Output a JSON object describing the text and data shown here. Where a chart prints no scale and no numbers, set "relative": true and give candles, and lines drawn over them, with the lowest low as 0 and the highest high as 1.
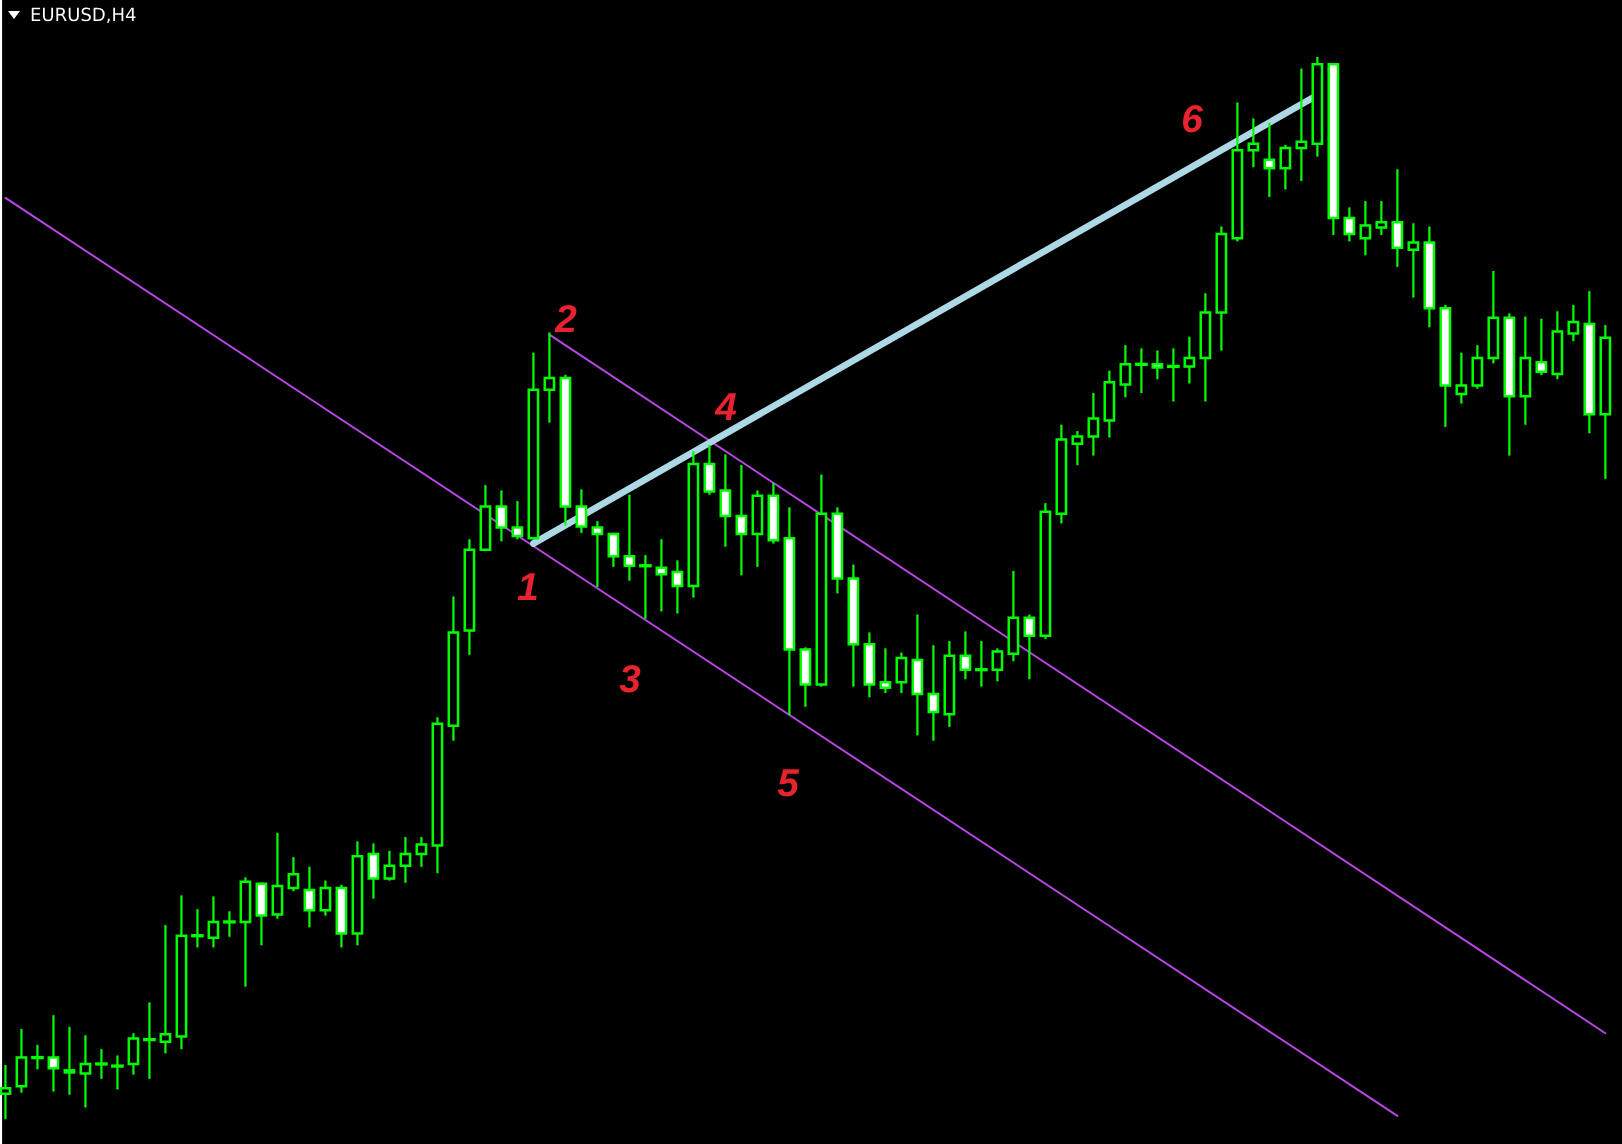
{
  "chart_data": {
    "type": "candlestick",
    "title": "EURUSD,H4",
    "relative": true,
    "tick_labels": false,
    "categories": [
      null,
      null,
      null,
      null,
      null,
      null,
      null,
      null,
      null,
      null,
      null,
      null,
      null,
      null,
      null,
      null,
      null,
      null,
      null,
      null,
      null,
      null,
      null,
      null,
      null,
      null,
      null,
      null,
      null,
      null,
      null,
      null,
      null,
      null,
      null,
      null,
      null,
      null,
      null,
      null,
      null,
      null,
      null,
      null,
      null,
      null,
      null,
      null,
      null,
      null,
      null,
      null,
      null,
      null,
      null,
      null,
      null,
      null,
      null,
      null,
      null,
      null,
      null,
      null,
      null,
      null,
      null,
      null,
      null,
      null,
      null,
      null,
      null,
      null,
      null,
      null,
      null,
      null,
      null,
      null,
      null,
      null,
      null,
      null,
      null,
      null,
      null,
      null,
      null,
      null,
      null,
      null,
      null,
      null,
      null,
      null,
      null,
      null,
      null,
      null,
      null
    ],
    "series": [
      {
        "color": "#00ff00",
        "colors": [
          "#000000",
          "#000000",
          "#00ff00",
          "#ffffff",
          "#ffffff",
          "#000000",
          "#00ff00",
          "#00ff00",
          "#000000",
          "#00ff00",
          "#000000",
          "#000000",
          "#00ff00",
          "#000000",
          "#00ff00",
          "#000000",
          "#ffffff",
          "#000000",
          "#000000",
          "#ffffff",
          "#000000",
          "#ffffff",
          "#000000",
          "#ffffff",
          "#000000",
          "#000000",
          "#000000",
          "#000000",
          "#000000",
          "#000000",
          "#000000",
          "#ffffff",
          "#ffffff",
          "#000000",
          "#000000",
          "#ffffff",
          "#ffffff",
          "#ffffff",
          "#ffffff",
          "#ffffff",
          "#00ff00",
          "#ffffff",
          "#ffffff",
          "#000000",
          "#ffffff",
          "#ffffff",
          "#ffffff",
          "#000000",
          "#ffffff",
          "#ffffff",
          "#ffffff",
          "#000000",
          "#ffffff",
          "#ffffff",
          "#ffffff",
          "#ffffff",
          "#000000",
          "#ffffff",
          "#ffffff",
          "#000000",
          "#ffffff",
          "#00ff00",
          "#000000",
          "#000000",
          "#ffffff",
          "#000000",
          "#000000",
          "#000000",
          "#000000",
          "#000000",
          "#000000",
          "#00ff00",
          "#ffffff",
          "#00ff00",
          "#000000",
          "#000000",
          "#000000",
          "#000000",
          "#000000",
          "#ffffff",
          "#000000",
          "#000000",
          "#000000",
          "#ffffff",
          "#ffffff",
          "#000000",
          "#000000",
          "#ffffff",
          "#000000",
          "#ffffff",
          "#ffffff",
          "#000000",
          "#000000",
          "#000000",
          "#ffffff",
          "#000000",
          "#ffffff",
          "#000000",
          "#000000",
          "#ffffff",
          "#000000"
        ],
        "ohlc": [
          [
            0.023,
            0.049,
            0,
            0.028
          ],
          [
            0.03,
            0.083,
            0.025,
            0.057
          ],
          [
            0.057,
            0.068,
            0.047,
            0.057
          ],
          [
            0.057,
            0.096,
            0.026,
            0.047
          ],
          [
            0.045,
            0.085,
            0.023,
            0.043
          ],
          [
            0.042,
            0.077,
            0.011,
            0.051
          ],
          [
            0.051,
            0.064,
            0.038,
            0.051
          ],
          [
            0.049,
            0.058,
            0.028,
            0.049
          ],
          [
            0.051,
            0.079,
            0.042,
            0.075
          ],
          [
            0.074,
            0.108,
            0.038,
            0.074
          ],
          [
            0.072,
            0.181,
            0.062,
            0.079
          ],
          [
            0.077,
            0.209,
            0.066,
            0.172
          ],
          [
            0.172,
            0.196,
            0.162,
            0.172
          ],
          [
            0.17,
            0.208,
            0.162,
            0.185
          ],
          [
            0.185,
            0.194,
            0.172,
            0.185
          ],
          [
            0.185,
            0.226,
            0.125,
            0.223
          ],
          [
            0.221,
            0.221,
            0.164,
            0.191
          ],
          [
            0.192,
            0.268,
            0.189,
            0.219
          ],
          [
            0.217,
            0.245,
            0.215,
            0.23
          ],
          [
            0.215,
            0.236,
            0.181,
            0.196
          ],
          [
            0.196,
            0.223,
            0.192,
            0.217
          ],
          [
            0.217,
            0.219,
            0.162,
            0.174
          ],
          [
            0.174,
            0.26,
            0.164,
            0.247
          ],
          [
            0.249,
            0.258,
            0.208,
            0.226
          ],
          [
            0.226,
            0.251,
            0.225,
            0.238
          ],
          [
            0.238,
            0.264,
            0.223,
            0.249
          ],
          [
            0.249,
            0.264,
            0.238,
            0.258
          ],
          [
            0.257,
            0.377,
            0.232,
            0.372
          ],
          [
            0.37,
            0.491,
            0.357,
            0.458
          ],
          [
            0.46,
            0.545,
            0.438,
            0.536
          ],
          [
            0.536,
            0.596,
            0.536,
            0.577
          ],
          [
            0.577,
            0.591,
            0.545,
            0.557
          ],
          [
            0.557,
            0.581,
            0.547,
            0.549
          ],
          [
            0.547,
            0.721,
            0.547,
            0.687
          ],
          [
            0.687,
            0.74,
            0.657,
            0.698
          ],
          [
            0.698,
            0.7,
            0.56,
            0.577
          ],
          [
            0.577,
            0.592,
            0.553,
            0.558
          ],
          [
            0.557,
            0.562,
            0.502,
            0.551
          ],
          [
            0.551,
            0.551,
            0.521,
            0.53
          ],
          [
            0.53,
            0.587,
            0.508,
            0.521
          ],
          [
            0.521,
            0.53,
            0.472,
            0.521
          ],
          [
            0.519,
            0.545,
            0.479,
            0.513
          ],
          [
            0.515,
            0.525,
            0.477,
            0.502
          ],
          [
            0.502,
            0.628,
            0.492,
            0.617
          ],
          [
            0.617,
            0.634,
            0.589,
            0.591
          ],
          [
            0.592,
            0.625,
            0.54,
            0.568
          ],
          [
            0.568,
            0.615,
            0.513,
            0.551
          ],
          [
            0.551,
            0.591,
            0.521,
            0.587
          ],
          [
            0.587,
            0.598,
            0.543,
            0.545
          ],
          [
            0.547,
            0.575,
            0.381,
            0.442
          ],
          [
            0.442,
            0.443,
            0.389,
            0.409
          ],
          [
            0.409,
            0.606,
            0.408,
            0.57
          ],
          [
            0.57,
            0.575,
            0.496,
            0.509
          ],
          [
            0.509,
            0.521,
            0.408,
            0.447
          ],
          [
            0.447,
            0.457,
            0.398,
            0.409
          ],
          [
            0.411,
            0.442,
            0.402,
            0.406
          ],
          [
            0.411,
            0.438,
            0.402,
            0.434
          ],
          [
            0.432,
            0.474,
            0.362,
            0.4
          ],
          [
            0.4,
            0.445,
            0.357,
            0.383
          ],
          [
            0.381,
            0.449,
            0.37,
            0.436
          ],
          [
            0.436,
            0.458,
            0.415,
            0.423
          ],
          [
            0.423,
            0.449,
            0.408,
            0.423
          ],
          [
            0.423,
            0.442,
            0.413,
            0.44
          ],
          [
            0.438,
            0.515,
            0.432,
            0.472
          ],
          [
            0.472,
            0.474,
            0.415,
            0.455
          ],
          [
            0.455,
            0.579,
            0.453,
            0.572
          ],
          [
            0.57,
            0.653,
            0.562,
            0.64
          ],
          [
            0.636,
            0.647,
            0.617,
            0.643
          ],
          [
            0.643,
            0.683,
            0.626,
            0.66
          ],
          [
            0.658,
            0.704,
            0.643,
            0.694
          ],
          [
            0.692,
            0.728,
            0.681,
            0.711
          ],
          [
            0.711,
            0.725,
            0.685,
            0.711
          ],
          [
            0.711,
            0.723,
            0.698,
            0.708
          ],
          [
            0.709,
            0.725,
            0.677,
            0.709
          ],
          [
            0.709,
            0.736,
            0.694,
            0.717
          ],
          [
            0.717,
            0.777,
            0.677,
            0.76
          ],
          [
            0.76,
            0.84,
            0.725,
            0.834
          ],
          [
            0.83,
            0.957,
            0.828,
            0.913
          ],
          [
            0.913,
            0.942,
            0.898,
            0.919
          ],
          [
            0.904,
            0.938,
            0.87,
            0.896
          ],
          [
            0.896,
            0.917,
            0.877,
            0.915
          ],
          [
            0.915,
            0.989,
            0.885,
            0.921
          ],
          [
            0.919,
            1,
            0.908,
            0.994
          ],
          [
            0.994,
            0.994,
            0.834,
            0.849
          ],
          [
            0.849,
            0.858,
            0.828,
            0.834
          ],
          [
            0.83,
            0.864,
            0.815,
            0.842
          ],
          [
            0.84,
            0.864,
            0.834,
            0.845
          ],
          [
            0.845,
            0.894,
            0.804,
            0.821
          ],
          [
            0.819,
            0.843,
            0.775,
            0.826
          ],
          [
            0.826,
            0.84,
            0.747,
            0.764
          ],
          [
            0.764,
            0.766,
            0.653,
            0.691
          ],
          [
            0.683,
            0.721,
            0.675,
            0.691
          ],
          [
            0.691,
            0.728,
            0.689,
            0.717
          ],
          [
            0.717,
            0.798,
            0.713,
            0.755
          ],
          [
            0.755,
            0.758,
            0.626,
            0.681
          ],
          [
            0.681,
            0.755,
            0.655,
            0.717
          ],
          [
            0.713,
            0.753,
            0.702,
            0.704
          ],
          [
            0.702,
            0.76,
            0.698,
            0.742
          ],
          [
            0.74,
            0.766,
            0.734,
            0.751
          ],
          [
            0.749,
            0.779,
            0.647,
            0.664
          ],
          [
            0.664,
            0.747,
            0.604,
            0.736
          ]
        ]
      },
      {
        "type": "line",
        "color": "#b847e6",
        "values": [
          0.868,
          null,
          null,
          null,
          null,
          null,
          null,
          null,
          null,
          null,
          null,
          null,
          null,
          null,
          null,
          null,
          null,
          null,
          null,
          null,
          null,
          null,
          null,
          null,
          null,
          null,
          null,
          null,
          null,
          null,
          null,
          null,
          null,
          null,
          null,
          null,
          null,
          null,
          null,
          null,
          null,
          null,
          null,
          null,
          null,
          null,
          null,
          null,
          null,
          null,
          null,
          null,
          null,
          null,
          null,
          null,
          null,
          null,
          null,
          null,
          null,
          null,
          null,
          null,
          null,
          null,
          null,
          null,
          null,
          null,
          null,
          null,
          null,
          null,
          null,
          null,
          null,
          null,
          null,
          null,
          null,
          null,
          null,
          null,
          null,
          null,
          null,
          0.002,
          null,
          null,
          null,
          null,
          null,
          null,
          null,
          null,
          null,
          null,
          null,
          null,
          null
        ]
      },
      {
        "type": "line",
        "color": "#b847e6",
        "values": [
          null,
          null,
          null,
          null,
          null,
          null,
          null,
          null,
          null,
          null,
          null,
          null,
          null,
          null,
          null,
          null,
          null,
          null,
          null,
          null,
          null,
          null,
          null,
          null,
          null,
          null,
          null,
          null,
          null,
          null,
          null,
          null,
          null,
          null,
          0.739,
          null,
          null,
          null,
          null,
          null,
          null,
          null,
          null,
          null,
          null,
          null,
          null,
          null,
          null,
          null,
          null,
          null,
          null,
          null,
          null,
          null,
          null,
          null,
          null,
          null,
          null,
          null,
          null,
          null,
          null,
          null,
          null,
          null,
          null,
          null,
          null,
          null,
          null,
          null,
          null,
          null,
          null,
          null,
          null,
          null,
          null,
          null,
          null,
          null,
          null,
          null,
          null,
          null,
          null,
          null,
          null,
          null,
          null,
          null,
          null,
          null,
          null,
          null,
          null,
          null,
          0.08
        ]
      },
      {
        "type": "line",
        "color": "#add8e6",
        "values": [
          null,
          null,
          null,
          null,
          null,
          null,
          null,
          null,
          null,
          null,
          null,
          null,
          null,
          null,
          null,
          null,
          null,
          null,
          null,
          null,
          null,
          null,
          null,
          null,
          null,
          null,
          null,
          null,
          null,
          null,
          null,
          null,
          null,
          0.542,
          null,
          null,
          null,
          null,
          null,
          null,
          null,
          null,
          null,
          null,
          null,
          null,
          null,
          null,
          null,
          null,
          null,
          null,
          null,
          null,
          null,
          null,
          null,
          null,
          null,
          null,
          null,
          null,
          null,
          null,
          null,
          null,
          null,
          null,
          null,
          null,
          null,
          null,
          null,
          null,
          null,
          null,
          null,
          null,
          null,
          null,
          null,
          null,
          0.965,
          null,
          null,
          null,
          null,
          null,
          null,
          null,
          null,
          null,
          null,
          null,
          null,
          null,
          null,
          null,
          null,
          null,
          null
        ]
      }
    ],
    "annotations": [
      "1",
      "2",
      "3",
      "4",
      "5",
      "6"
    ]
  }
}
